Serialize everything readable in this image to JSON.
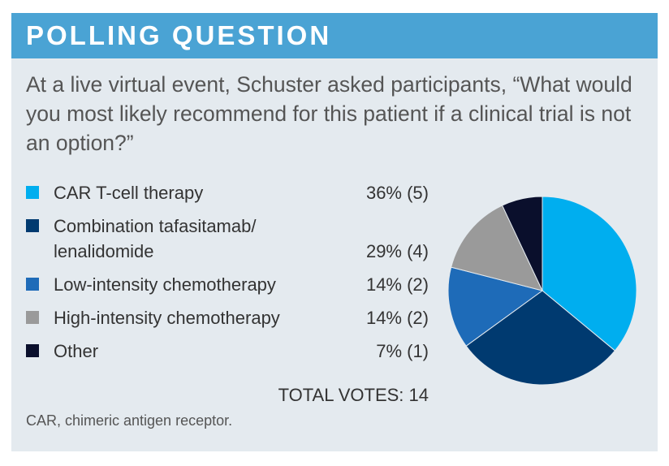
{
  "chart_data": {
    "type": "pie",
    "title": "POLLING QUESTION",
    "subtitle": "At a live virtual event, Schuster asked participants, “What would you most likely recommend for this patient if a clinical trial is not an option?”",
    "categories": [
      "CAR T-cell therapy",
      "Combination tafasitamab/ lenalidomide",
      "Low-intensity chemotherapy",
      "High-intensity chemotherapy",
      "Other"
    ],
    "values": [
      36,
      29,
      14,
      14,
      7
    ],
    "value_labels": [
      "36% (5)",
      "29% (4)",
      "14% (2)",
      "14% (2)",
      "7% (1)"
    ],
    "colors": [
      "#00aeef",
      "#003a70",
      "#1e6bb8",
      "#9a9a9a",
      "#0a0f2c"
    ],
    "annotation": "TOTAL VOTES: 14",
    "footnote": "CAR, chimeric antigen receptor."
  }
}
